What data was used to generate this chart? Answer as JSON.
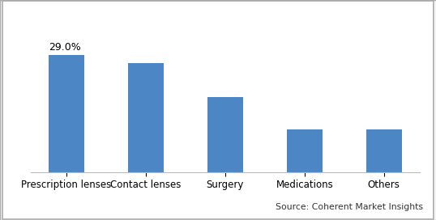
{
  "categories": [
    "Prescription lenses",
    "Contact lenses",
    "Surgery",
    "Medications",
    "Others"
  ],
  "values": [
    29.0,
    27.0,
    18.5,
    10.5,
    10.5
  ],
  "bar_color": "#4d86c4",
  "annotation_text": "29.0%",
  "annotation_bar_index": 0,
  "source_text": "Source: Coherent Market Insights",
  "ylim": [
    0,
    38
  ],
  "background_color": "#ffffff",
  "bar_width": 0.45,
  "grid_color": "#cccccc",
  "grid_linewidth": 0.8,
  "tick_label_fontsize": 8.5,
  "annotation_fontsize": 9,
  "source_fontsize": 7.8,
  "border_color": "#aaaaaa",
  "border_linewidth": 1.0
}
